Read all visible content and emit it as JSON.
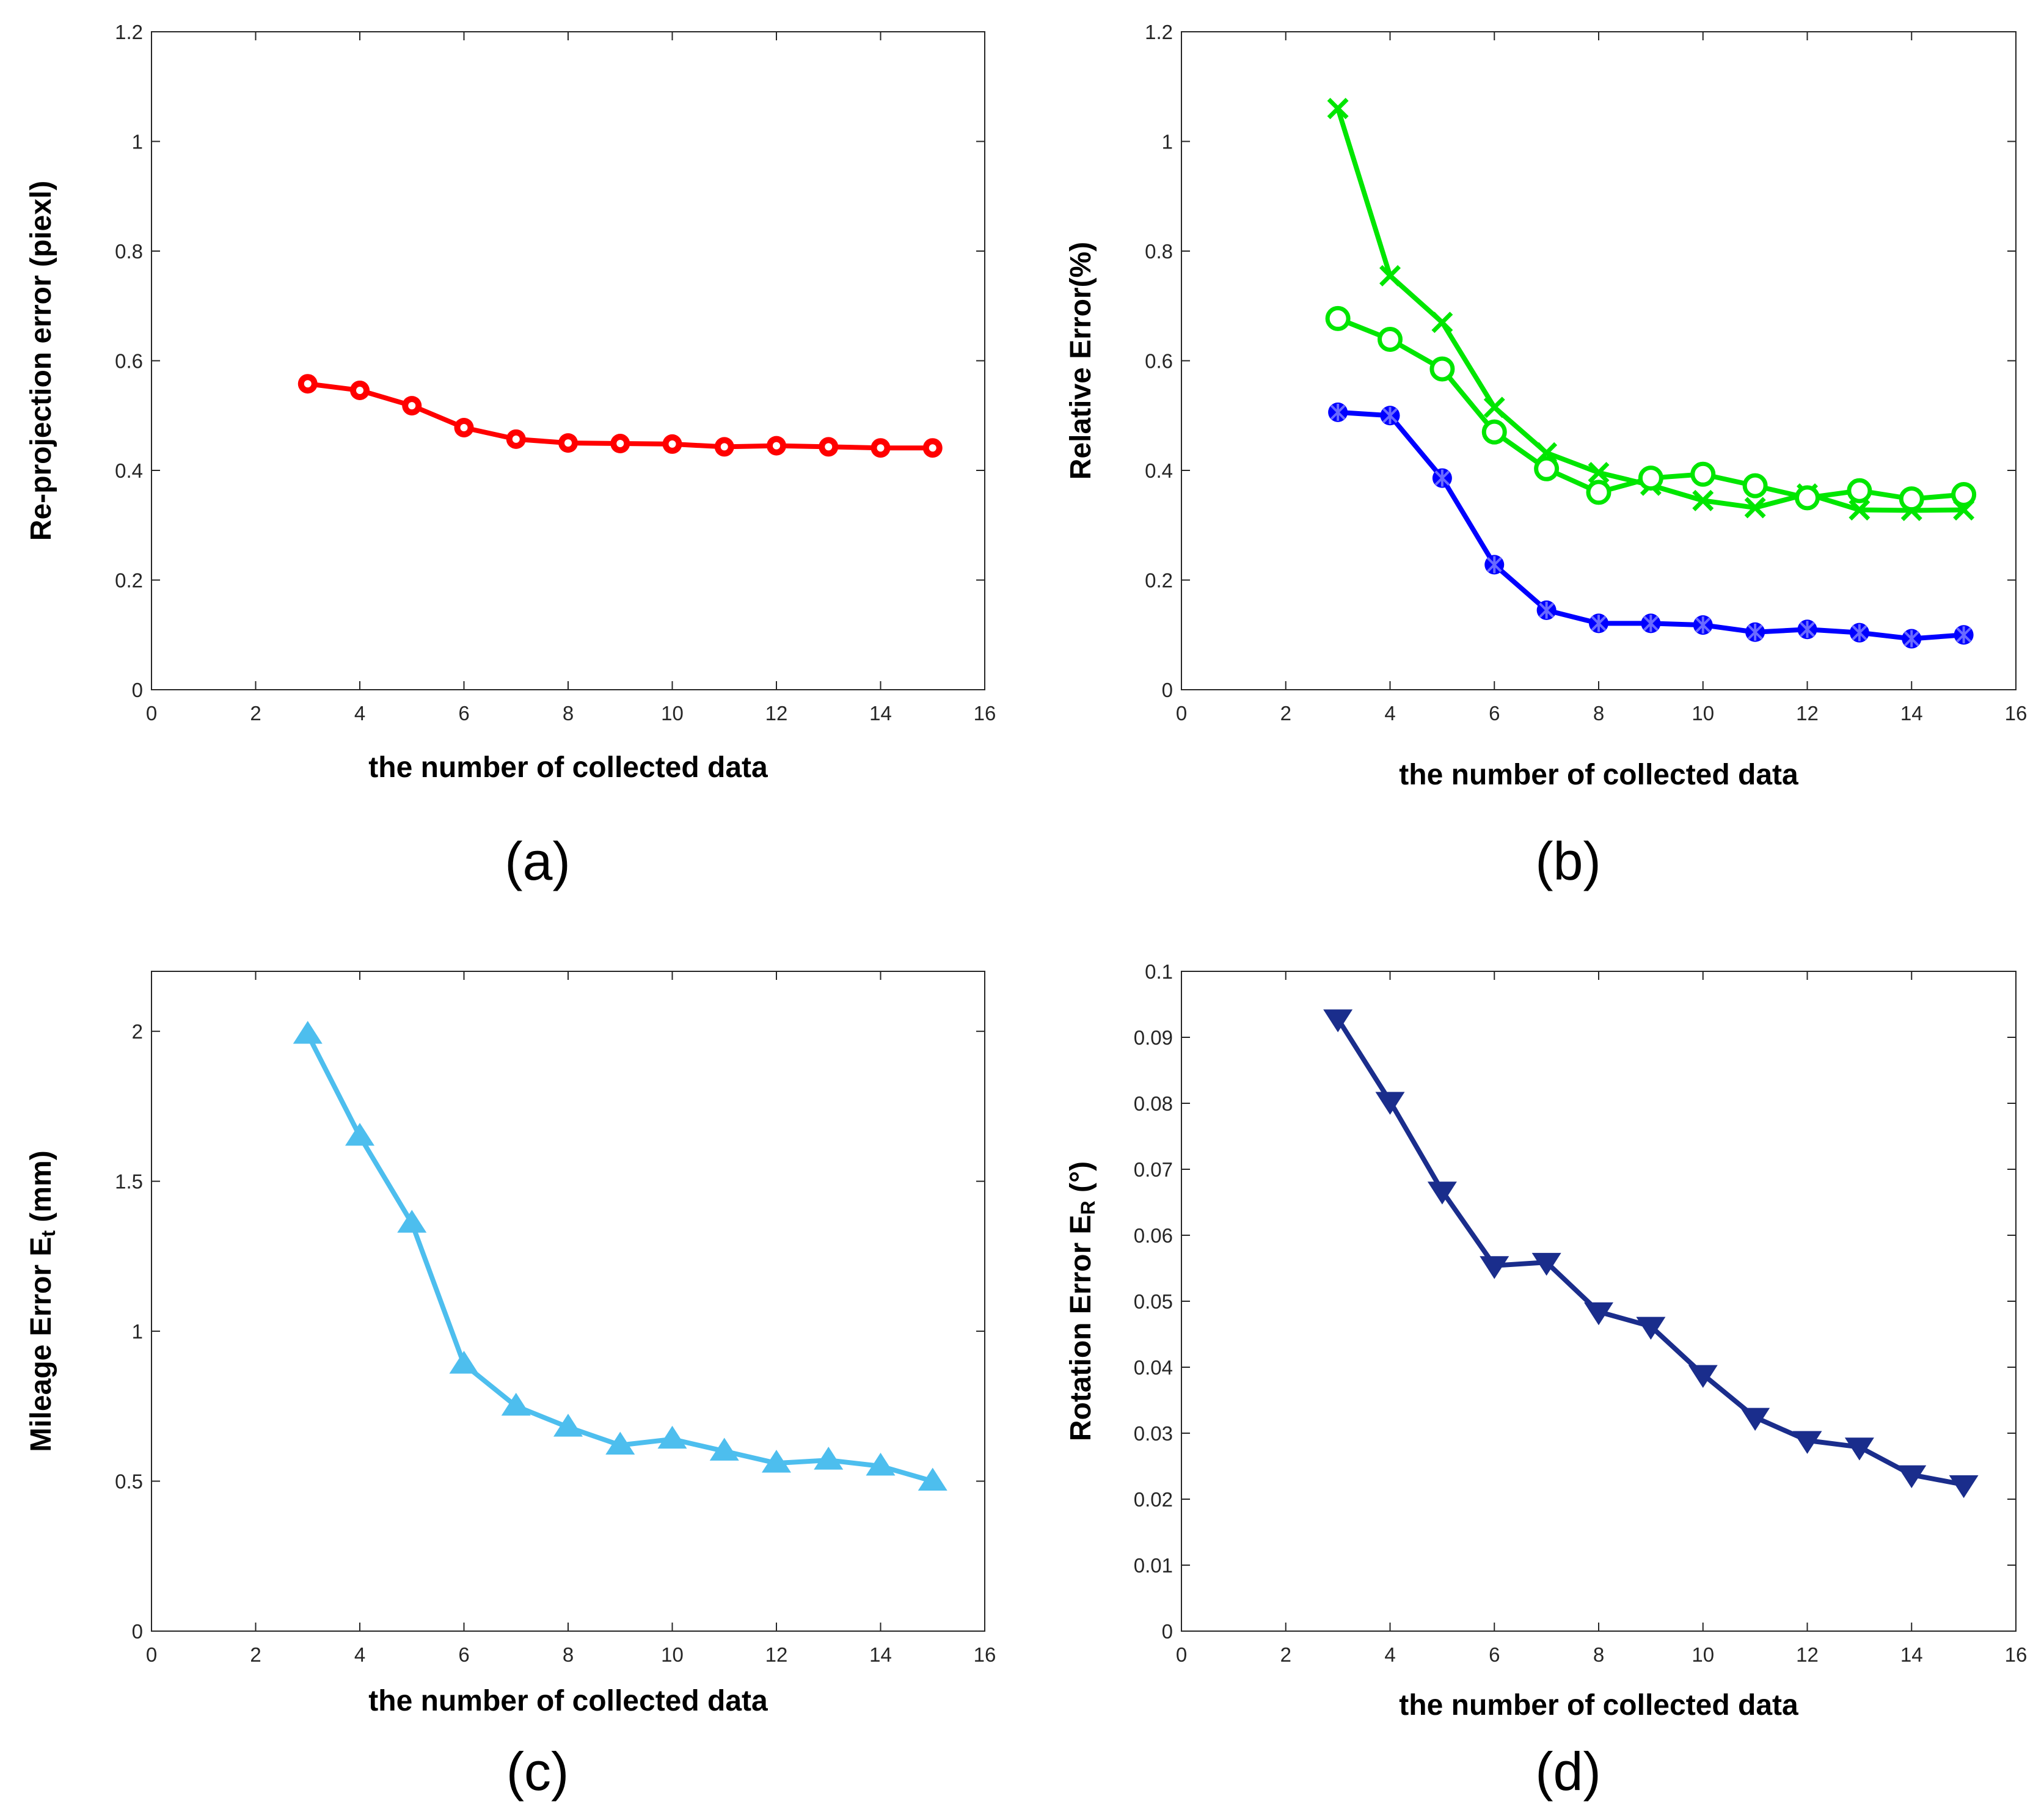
{
  "chart_data": [
    {
      "type": "line",
      "panel_label": "(a)",
      "xlabel": "the number of collected data",
      "ylabel": "Re-projection  error (piexl)",
      "ylabel_sub": "",
      "ylabel_suffix": "",
      "xlim": [
        0,
        16
      ],
      "ylim": [
        0,
        1.2
      ],
      "xticks": [
        0,
        2,
        4,
        6,
        8,
        10,
        12,
        14,
        16
      ],
      "yticks": [
        0,
        0.2,
        0.4,
        0.6,
        0.8,
        1,
        1.2
      ],
      "ytick_labels": [
        "0",
        "0.2",
        "0.4",
        "0.6",
        "0.8",
        "1",
        "1.2"
      ],
      "grid": false,
      "x": [
        3,
        4,
        5,
        6,
        7,
        8,
        9,
        10,
        11,
        12,
        13,
        14,
        15
      ],
      "series": [
        {
          "color": "#ff0000",
          "marker": "circle-filled",
          "values": [
            0.558,
            0.546,
            0.518,
            0.478,
            0.457,
            0.45,
            0.449,
            0.448,
            0.443,
            0.445,
            0.443,
            0.441,
            0.441
          ]
        }
      ]
    },
    {
      "type": "line",
      "panel_label": "(b)",
      "xlabel": "the number of collected data",
      "ylabel": "Relative Error(%)",
      "ylabel_sub": "",
      "ylabel_suffix": "",
      "xlim": [
        0,
        16
      ],
      "ylim": [
        0,
        1.2
      ],
      "xticks": [
        0,
        2,
        4,
        6,
        8,
        10,
        12,
        14,
        16
      ],
      "yticks": [
        0,
        0.2,
        0.4,
        0.6,
        0.8,
        1,
        1.2
      ],
      "ytick_labels": [
        "0",
        "0.2",
        "0.4",
        "0.6",
        "0.8",
        "1",
        "1.2"
      ],
      "grid": false,
      "x": [
        3,
        4,
        5,
        6,
        7,
        8,
        9,
        10,
        11,
        12,
        13,
        14,
        15
      ],
      "series": [
        {
          "color": "#00e600",
          "marker": "x",
          "values": [
            1.06,
            0.755,
            0.67,
            0.515,
            0.432,
            0.396,
            0.373,
            0.345,
            0.332,
            0.357,
            0.328,
            0.327,
            0.328
          ]
        },
        {
          "color": "#00e600",
          "marker": "circle-open",
          "values": [
            0.677,
            0.639,
            0.585,
            0.47,
            0.403,
            0.36,
            0.386,
            0.393,
            0.372,
            0.35,
            0.363,
            0.348,
            0.356
          ]
        },
        {
          "color": "#0000ff",
          "marker": "star",
          "values": [
            0.506,
            0.5,
            0.386,
            0.228,
            0.145,
            0.121,
            0.121,
            0.118,
            0.105,
            0.11,
            0.104,
            0.093,
            0.1
          ]
        }
      ]
    },
    {
      "type": "line",
      "panel_label": "(c)",
      "xlabel": "the number of collected data",
      "ylabel": "Mileage Error E",
      "ylabel_sub": "t",
      "ylabel_suffix": " (mm)",
      "xlim": [
        0,
        16
      ],
      "ylim": [
        0,
        2.2
      ],
      "xticks": [
        0,
        2,
        4,
        6,
        8,
        10,
        12,
        14,
        16
      ],
      "yticks": [
        0,
        0.5,
        1,
        1.5,
        2
      ],
      "ytick_labels": [
        "0",
        "0.5",
        "1",
        "1.5",
        "2"
      ],
      "grid": false,
      "x": [
        3,
        4,
        5,
        6,
        7,
        8,
        9,
        10,
        11,
        12,
        13,
        14,
        15
      ],
      "series": [
        {
          "color": "#4dbeee",
          "marker": "triangle-up",
          "values": [
            1.99,
            1.65,
            1.36,
            0.89,
            0.75,
            0.68,
            0.62,
            0.64,
            0.6,
            0.56,
            0.57,
            0.55,
            0.5
          ]
        }
      ]
    },
    {
      "type": "line",
      "panel_label": "(d)",
      "xlabel": "the number of collected data",
      "ylabel": "Rotation Error E",
      "ylabel_sub": "R",
      "ylabel_suffix": " (°)",
      "xlim": [
        0,
        16
      ],
      "ylim": [
        0,
        0.1
      ],
      "xticks": [
        0,
        2,
        4,
        6,
        8,
        10,
        12,
        14,
        16
      ],
      "yticks": [
        0,
        0.01,
        0.02,
        0.03,
        0.04,
        0.05,
        0.06,
        0.07,
        0.08,
        0.09,
        0.1
      ],
      "ytick_labels": [
        "0",
        "0.01",
        "0.02",
        "0.03",
        "0.04",
        "0.05",
        "0.06",
        "0.07",
        "0.08",
        "0.09",
        "0.1"
      ],
      "grid": false,
      "x": [
        3,
        4,
        5,
        6,
        7,
        8,
        9,
        10,
        11,
        12,
        13,
        14,
        15
      ],
      "series": [
        {
          "color": "#1a2d8c",
          "marker": "triangle-down",
          "values": [
            0.0928,
            0.0803,
            0.0667,
            0.0554,
            0.0559,
            0.0484,
            0.0462,
            0.0389,
            0.0324,
            0.0289,
            0.0279,
            0.0237,
            0.0222
          ]
        }
      ]
    }
  ]
}
